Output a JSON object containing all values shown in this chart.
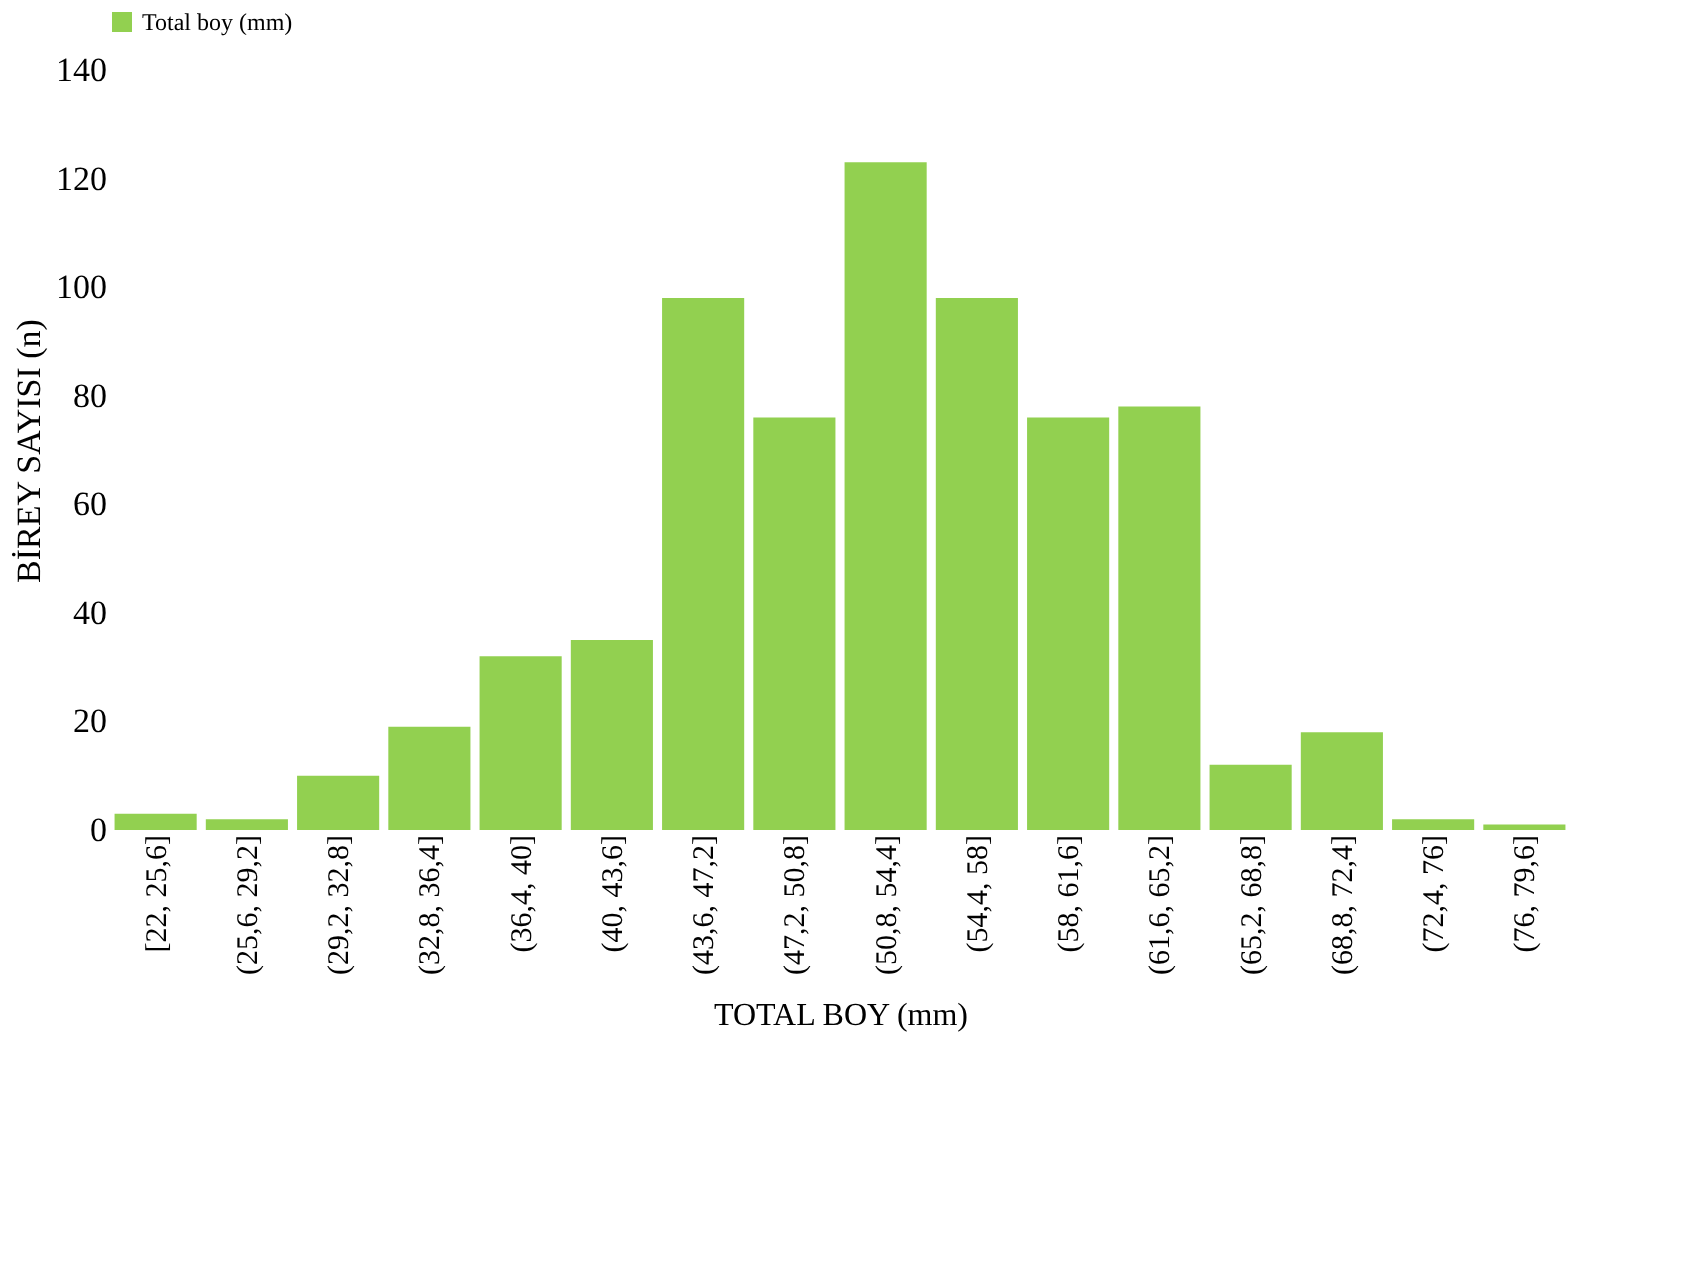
{
  "chart_data": {
    "type": "bar",
    "xlabel": "TOTAL BOY (mm)",
    "ylabel": "BİREY SAYISI (n)",
    "categories": [
      "[22, 25,6]",
      "(25,6, 29,2]",
      "(29,2, 32,8]",
      "(32,8, 36,4]",
      "(36,4, 40]",
      "(40, 43,6]",
      "(43,6, 47,2]",
      "(47,2, 50,8]",
      "(50,8, 54,4]",
      "(54,4, 58]",
      "(58, 61,6]",
      "(61,6, 65,2]",
      "(65,2, 68,8]",
      "(68,8, 72,4]",
      "(72,4, 76]",
      "(76, 79,6]"
    ],
    "series": [
      {
        "name": "Total boy (mm)",
        "color": "#92d050",
        "values": [
          3,
          2,
          10,
          19,
          32,
          35,
          98,
          76,
          123,
          98,
          76,
          78,
          12,
          18,
          2,
          1
        ]
      }
    ],
    "ylim": [
      0,
      140
    ],
    "yticks": [
      0,
      20,
      40,
      60,
      80,
      100,
      120,
      140
    ],
    "grid": false,
    "legend": "top"
  }
}
